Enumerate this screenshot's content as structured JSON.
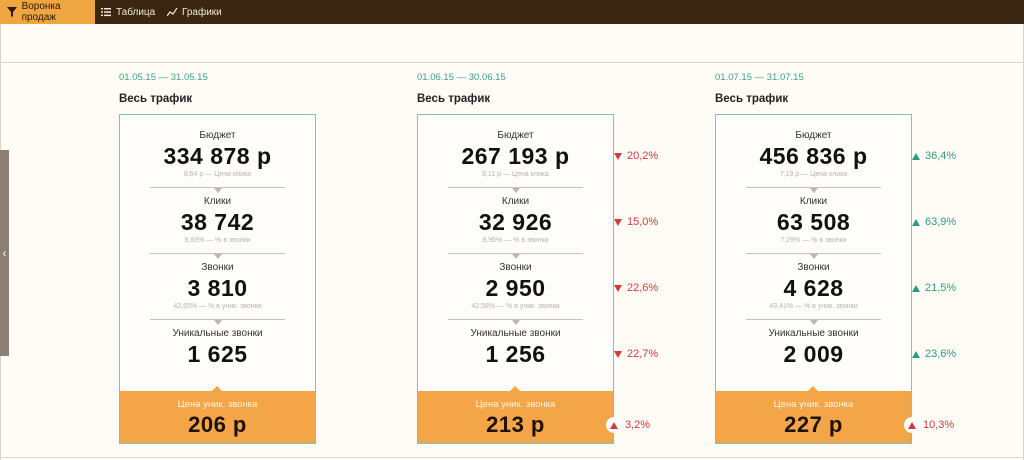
{
  "tabs": [
    {
      "label": "Воронка продаж",
      "icon": "funnel-icon",
      "active": true
    },
    {
      "label": "Таблица",
      "icon": "list-icon",
      "active": false
    },
    {
      "label": "Графики",
      "icon": "chart-icon",
      "active": false
    }
  ],
  "colors": {
    "accent": "#f3a547",
    "up": "#2d9a80",
    "down": "#d33a3a",
    "topbar": "#3b2711"
  },
  "periods": [
    {
      "date_range": "01.05.15 — 31.05.15",
      "traffic": "Весь трафик",
      "budget": {
        "label": "Бюджет",
        "value": "334 878 р",
        "sub": "8,64 р — Цена клика"
      },
      "clicks": {
        "label": "Клики",
        "value": "38 742",
        "sub": "9,83% — % в звонки"
      },
      "calls": {
        "label": "Звонки",
        "value": "3 810",
        "sub": "42,65% — % в уник. звонки"
      },
      "unique": {
        "label": "Уникальные звонки",
        "value": "1 625"
      },
      "cost": {
        "label": "Цена уник. звонка",
        "value": "206 р"
      }
    },
    {
      "date_range": "01.06.15 — 30.06.15",
      "traffic": "Весь трафик",
      "budget": {
        "label": "Бюджет",
        "value": "267 193 р",
        "sub": "8,11 р — Цена клика",
        "change": "20,2%",
        "dir": "down"
      },
      "clicks": {
        "label": "Клики",
        "value": "32 926",
        "sub": "8,96% — % в звонки",
        "change": "15,0%",
        "dir": "down"
      },
      "calls": {
        "label": "Звонки",
        "value": "2 950",
        "sub": "42,58% — % в уник. звонки",
        "change": "22,6%",
        "dir": "down"
      },
      "unique": {
        "label": "Уникальные звонки",
        "value": "1 256",
        "change": "22,7%",
        "dir": "down"
      },
      "cost": {
        "label": "Цена уник. звонка",
        "value": "213 р",
        "change": "3,2%",
        "dir": "up"
      }
    },
    {
      "date_range": "01.07.15 — 31.07.15",
      "traffic": "Весь трафик",
      "budget": {
        "label": "Бюджет",
        "value": "456 836 р",
        "sub": "7,19 р — Цена клика",
        "change": "36,4%",
        "dir": "up"
      },
      "clicks": {
        "label": "Клики",
        "value": "63 508",
        "sub": "7,29% — % в звонки",
        "change": "63,9%",
        "dir": "up"
      },
      "calls": {
        "label": "Звонки",
        "value": "4 628",
        "sub": "43,41% — % в уник. звонки",
        "change": "21,5%",
        "dir": "up"
      },
      "unique": {
        "label": "Уникальные звонки",
        "value": "2 009",
        "change": "23,6%",
        "dir": "up"
      },
      "cost": {
        "label": "Цена уник. звонка",
        "value": "227 р",
        "change": "10,3%",
        "dir": "up"
      }
    }
  ]
}
